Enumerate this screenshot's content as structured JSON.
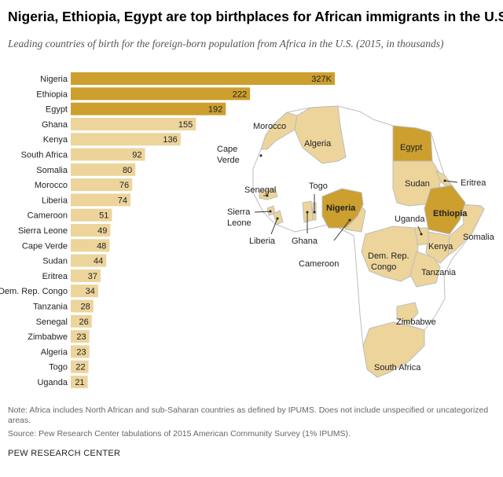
{
  "title": "Nigeria, Ethiopia, Egypt are top birthplaces for African immigrants in the U.S.",
  "subtitle": "Leading countries of birth for the foreign-born population from Africa in the U.S. (2015, in thousands)",
  "colors": {
    "dark": "#cc9f2e",
    "light": "#ecd49b",
    "map_other": "#ffffff",
    "map_border": "#bdbdbd"
  },
  "chart_data": {
    "type": "bar",
    "orientation": "horizontal",
    "categories": [
      "Nigeria",
      "Ethiopia",
      "Egypt",
      "Ghana",
      "Kenya",
      "South Africa",
      "Somalia",
      "Morocco",
      "Liberia",
      "Cameroon",
      "Sierra Leone",
      "Cape Verde",
      "Sudan",
      "Eritrea",
      "Dem. Rep. Congo",
      "Tanzania",
      "Senegal",
      "Zimbabwe",
      "Algeria",
      "Togo",
      "Uganda"
    ],
    "values": [
      327,
      222,
      192,
      155,
      136,
      92,
      80,
      76,
      74,
      51,
      49,
      48,
      44,
      37,
      34,
      28,
      26,
      23,
      23,
      22,
      21
    ],
    "value_labels": [
      "327K",
      "222",
      "192",
      "155",
      "136",
      "92",
      "80",
      "76",
      "74",
      "51",
      "49",
      "48",
      "44",
      "37",
      "34",
      "28",
      "26",
      "23",
      "23",
      "22",
      "21"
    ],
    "top_highlight_count": 3,
    "unit": "thousands",
    "xlim": [
      0,
      327
    ]
  },
  "map": {
    "labels": [
      "Morocco",
      "Algeria",
      "Egypt",
      "Cape Verde",
      "Senegal",
      "Togo",
      "Nigeria",
      "Sierra Leone",
      "Liberia",
      "Ghana",
      "Cameroon",
      "Sudan",
      "Eritrea",
      "Ethiopia",
      "Uganda",
      "Somalia",
      "Kenya",
      "Dem. Rep. Congo",
      "Tanzania",
      "Zimbabwe",
      "South Africa"
    ]
  },
  "note": "Note: Africa includes North African and sub-Saharan countries as defined by IPUMS. Does not include unspecified or uncategorized areas.",
  "source": "Source: Pew Research Center tabulations of 2015 American Community Survey (1% IPUMS).",
  "brand": "PEW RESEARCH CENTER"
}
